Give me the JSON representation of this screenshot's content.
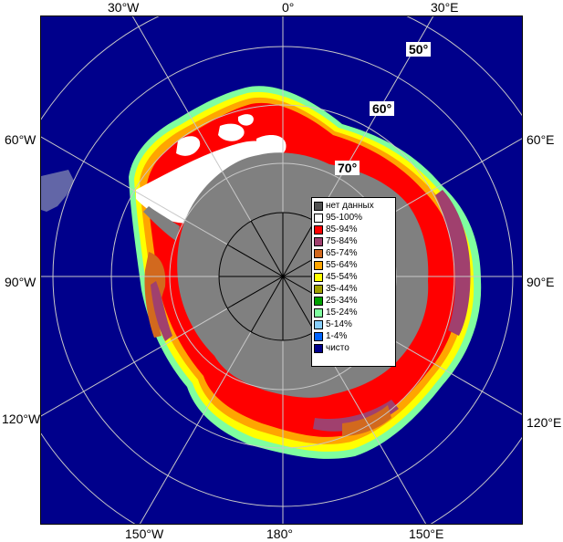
{
  "labels": {
    "top": [
      "30°W",
      "0°",
      "30°E"
    ],
    "left": [
      "60°W",
      "90°W",
      "120°W"
    ],
    "right": [
      "60°E",
      "90°E",
      "120°E"
    ],
    "bottom": [
      "150°W",
      "180°",
      "150°E"
    ],
    "latitudes": [
      "50°",
      "60°",
      "70°"
    ]
  },
  "legend": [
    {
      "label": "нет данных",
      "color": "#505050"
    },
    {
      "label": "95-100%",
      "color": "#ffffff"
    },
    {
      "label": "85-94%",
      "color": "#ff0000"
    },
    {
      "label": "75-84%",
      "color": "#a0406e"
    },
    {
      "label": "65-74%",
      "color": "#d2691e"
    },
    {
      "label": "55-64%",
      "color": "#ffa500"
    },
    {
      "label": "45-54%",
      "color": "#ffff00"
    },
    {
      "label": "35-44%",
      "color": "#a0a000"
    },
    {
      "label": "25-34%",
      "color": "#00a000"
    },
    {
      "label": "15-24%",
      "color": "#7fff9f"
    },
    {
      "label": "5-14%",
      "color": "#87cefa"
    },
    {
      "label": "1-4%",
      "color": "#0064ff"
    },
    {
      "label": "чисто",
      "color": "#00008b"
    }
  ],
  "colors": {
    "ocean": "#00008b",
    "land": "#808080",
    "grid": "#c8c8c8"
  }
}
